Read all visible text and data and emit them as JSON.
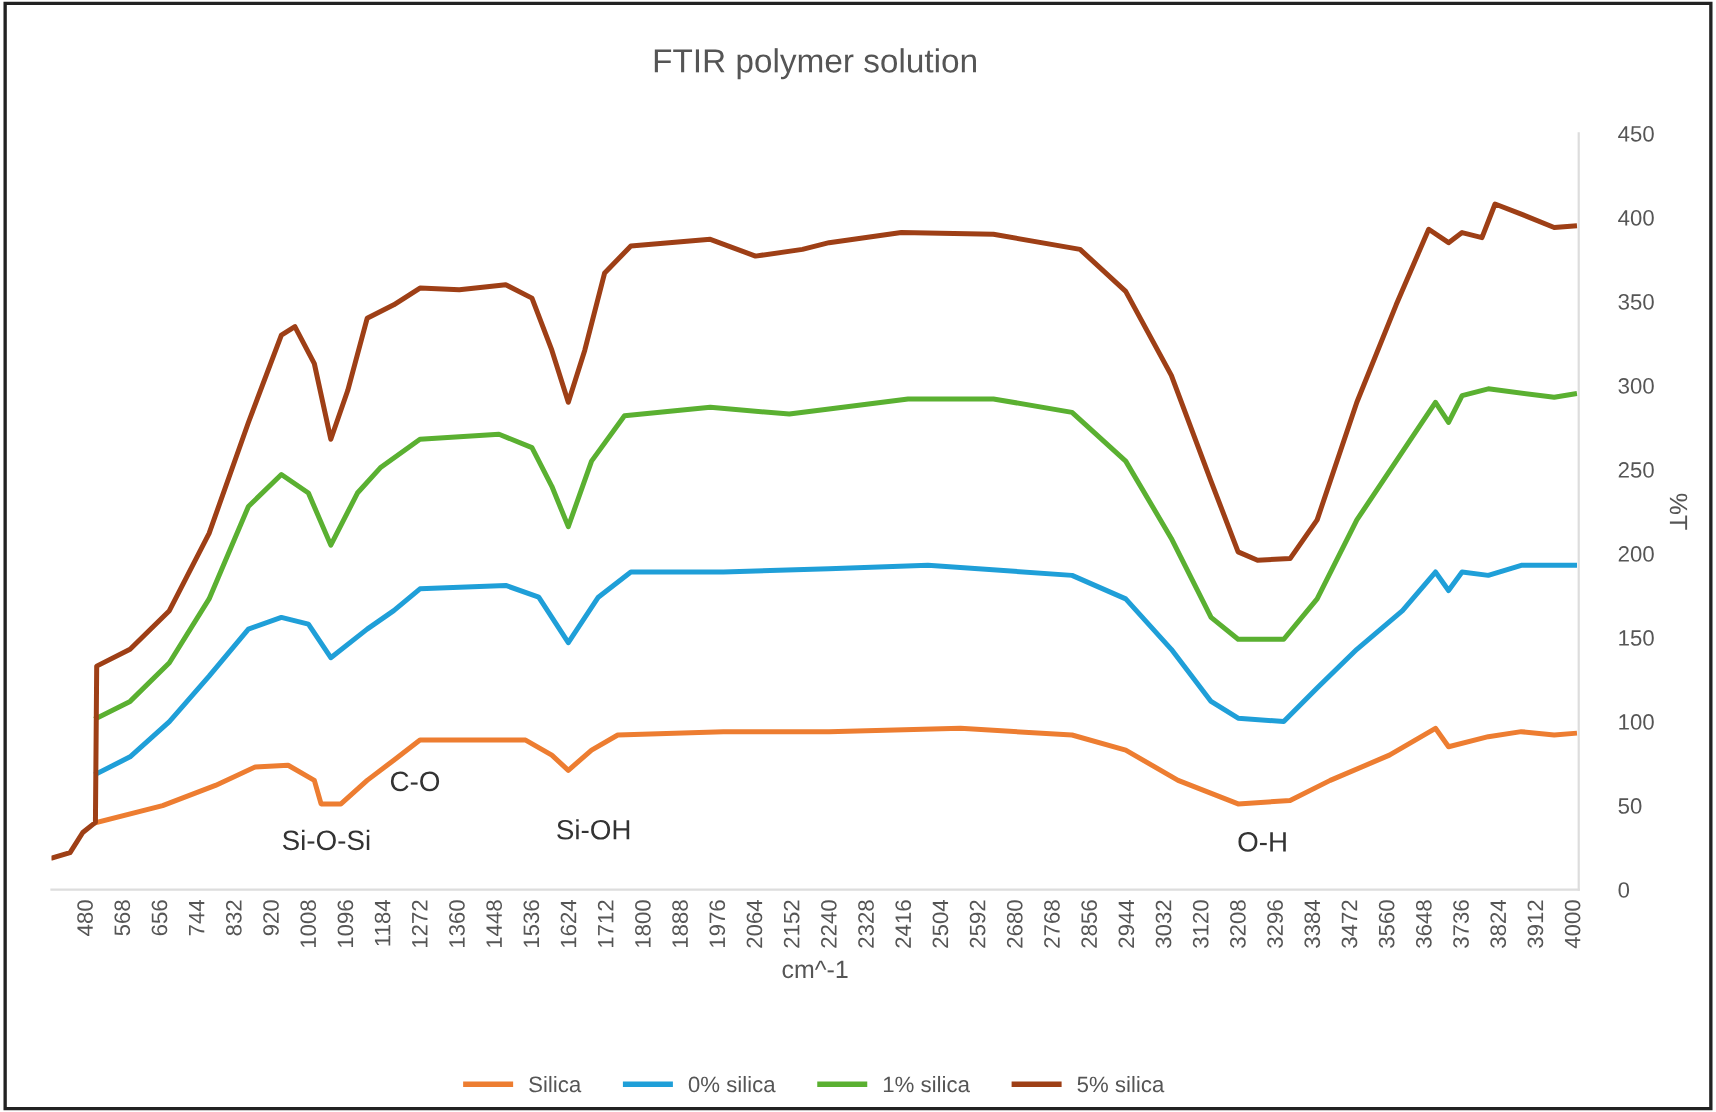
{
  "chart_data": {
    "type": "line",
    "title": "FTIR polymer solution",
    "xlabel": "cm^-1",
    "ylabel": "%T",
    "xlim": [
      396,
      4010
    ],
    "ylim": [
      0,
      450
    ],
    "xticks": [
      480,
      568,
      656,
      744,
      832,
      920,
      1008,
      1096,
      1184,
      1272,
      1360,
      1448,
      1536,
      1624,
      1712,
      1800,
      1888,
      1976,
      2064,
      2152,
      2240,
      2328,
      2416,
      2504,
      2592,
      2680,
      2768,
      2856,
      2944,
      3032,
      3120,
      3208,
      3296,
      3384,
      3472,
      3560,
      3648,
      3736,
      3824,
      3912,
      4000
    ],
    "yticks": [
      0,
      50,
      100,
      150,
      200,
      250,
      300,
      350,
      400,
      450
    ],
    "grid": false,
    "legend": "bottom",
    "marker": "none",
    "line_style": "solid",
    "annotations": [
      "Si-O-Si",
      "C-O",
      "Si-OH",
      "O-H"
    ],
    "series": [
      {
        "name": "Silica",
        "color": "#ed7d31",
        "x": [
          503,
          659,
          784,
          878,
          956,
          1018,
          1034,
          1081,
          1143,
          1206,
          1268,
          1518,
          1580,
          1619,
          1674,
          1736,
          1986,
          2236,
          2547,
          2811,
          2938,
          3062,
          3204,
          3327,
          3422,
          3562,
          3671,
          3702,
          3796,
          3874,
          3952,
          4000
        ],
        "values": [
          40,
          50,
          62,
          73,
          74,
          65,
          51,
          51,
          65,
          77,
          89,
          89,
          80,
          71,
          83,
          92,
          94,
          94,
          96,
          92,
          83,
          65,
          51,
          53,
          65,
          80,
          96,
          85,
          91,
          94,
          92,
          93
        ]
      },
      {
        "name": "0% silica",
        "color": "#1f9fd8",
        "x": [
          503,
          582,
          675,
          769,
          862,
          940,
          1004,
          1057,
          1143,
          1206,
          1268,
          1471,
          1549,
          1619,
          1690,
          1767,
          1986,
          2236,
          2470,
          2811,
          2938,
          3046,
          3140,
          3204,
          3312,
          3391,
          3485,
          3593,
          3671,
          3702,
          3734,
          3796,
          3874,
          4000
        ],
        "values": [
          69,
          79,
          100,
          127,
          155,
          162,
          158,
          138,
          155,
          166,
          179,
          181,
          174,
          147,
          174,
          189,
          189,
          191,
          193,
          187,
          173,
          143,
          112,
          102,
          100,
          120,
          143,
          166,
          189,
          178,
          189,
          187,
          193,
          193
        ]
      },
      {
        "name": "1% silica",
        "color": "#5ab031",
        "x": [
          503,
          582,
          675,
          769,
          862,
          940,
          1004,
          1057,
          1120,
          1174,
          1268,
          1455,
          1533,
          1580,
          1619,
          1674,
          1752,
          1955,
          2142,
          2236,
          2423,
          2625,
          2811,
          2938,
          3046,
          3140,
          3204,
          3312,
          3391,
          3485,
          3578,
          3671,
          3702,
          3734,
          3796,
          3952,
          4000
        ],
        "values": [
          102,
          112,
          135,
          173,
          228,
          247,
          236,
          205,
          236,
          251,
          268,
          271,
          263,
          240,
          216,
          255,
          282,
          287,
          283,
          286,
          292,
          292,
          284,
          255,
          209,
          162,
          149,
          149,
          173,
          220,
          255,
          290,
          278,
          294,
          298,
          293,
          295
        ]
      },
      {
        "name": "5% silica",
        "color": "#9e3f16",
        "x": [
          400,
          440,
          470,
          500,
          503,
          582,
          675,
          769,
          862,
          940,
          972,
          1018,
          1057,
          1097,
          1143,
          1206,
          1268,
          1361,
          1471,
          1533,
          1580,
          1619,
          1658,
          1705,
          1767,
          1955,
          2062,
          2173,
          2236,
          2407,
          2625,
          2830,
          2938,
          3046,
          3140,
          3204,
          3250,
          3327,
          3391,
          3485,
          3578,
          3655,
          3702,
          3734,
          3781,
          3812,
          3874,
          3952,
          4000
        ],
        "values": [
          19,
          22,
          34,
          40,
          133,
          143,
          166,
          212,
          278,
          330,
          335,
          313,
          268,
          297,
          340,
          348,
          358,
          357,
          360,
          352,
          321,
          290,
          321,
          367,
          383,
          387,
          377,
          381,
          385,
          391,
          390,
          381,
          356,
          306,
          243,
          201,
          196,
          197,
          220,
          290,
          348,
          393,
          385,
          391,
          388,
          408,
          402,
          394,
          395
        ]
      }
    ]
  }
}
